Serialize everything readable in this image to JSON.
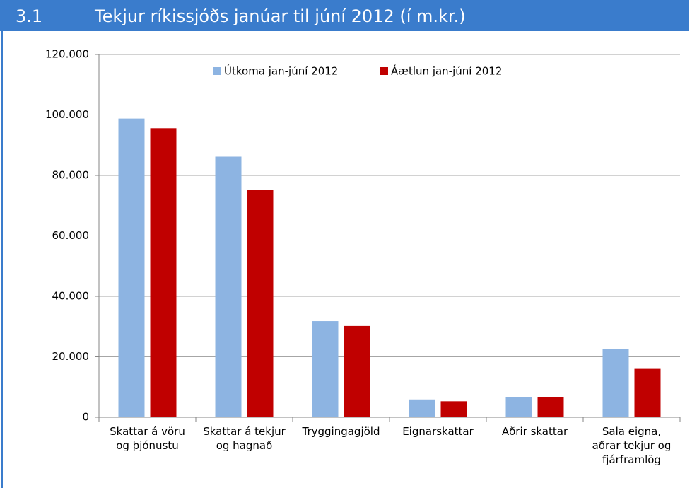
{
  "chart_data": {
    "type": "bar",
    "section": "3.1",
    "title": "Tekjur ríkissjóðs janúar til júní 2012 (í m.kr.)",
    "categories": [
      "Skattar á vöru\nog þjónustu",
      "Skattar á tekjur\nog hagnað",
      "Tryggingagjöld",
      "Eignarskattar",
      "Aðrir skattar",
      "Sala eigna,\naðrar tekjur og\nfjárframlög"
    ],
    "series": [
      {
        "name": "Útkoma jan-júní 2012",
        "color": "#8db4e2",
        "values": [
          98800,
          86200,
          31800,
          5900,
          6600,
          22600
        ]
      },
      {
        "name": "Áætlun jan-júní 2012",
        "color": "#c00000",
        "values": [
          95600,
          75200,
          30200,
          5300,
          6600,
          16000
        ]
      }
    ],
    "ylim": [
      0,
      120000
    ],
    "yticks": [
      0,
      {
        "value": 20000,
        "label": "20.000"
      },
      {
        "value": 40000,
        "label": "40.000"
      },
      {
        "value": 60000,
        "label": "60.000"
      },
      {
        "value": 80000,
        "label": "80.000"
      },
      {
        "value": 100000,
        "label": "100.000"
      },
      {
        "value": 120000,
        "label": "120.000"
      }
    ],
    "grid": true,
    "legend": "top"
  }
}
